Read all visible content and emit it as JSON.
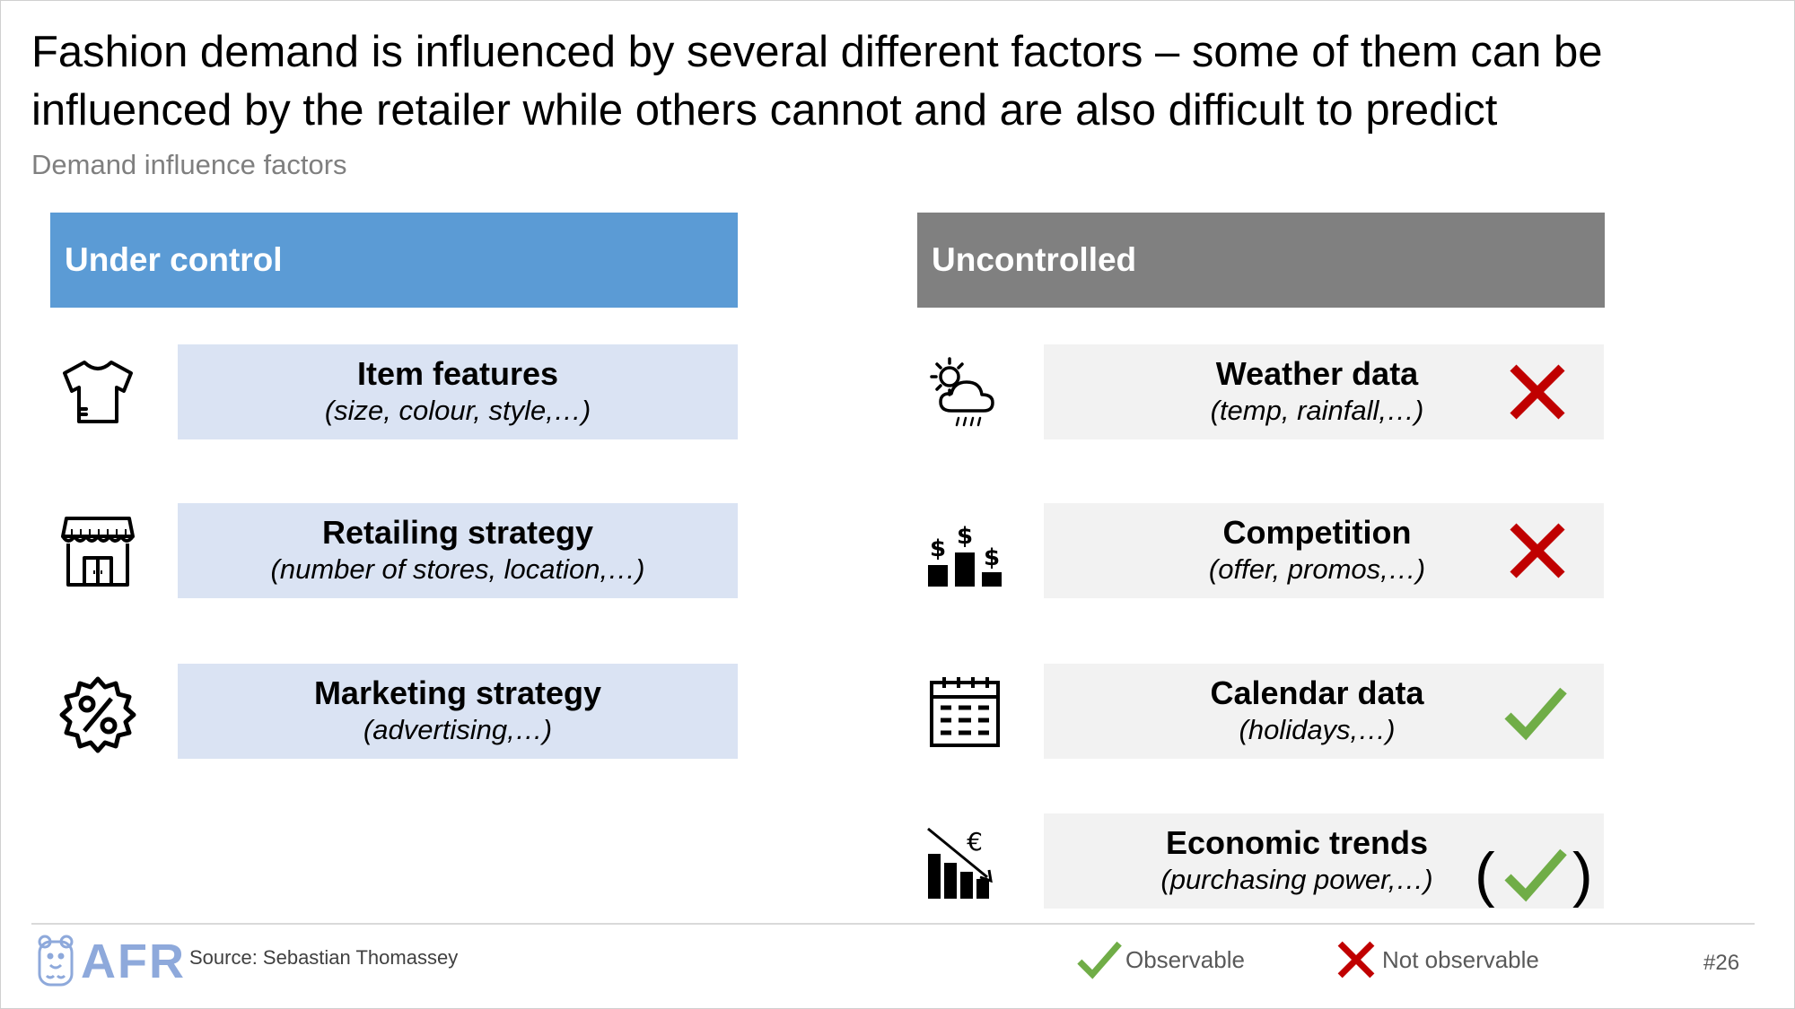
{
  "slide": {
    "title": "Fashion demand is influenced by several different factors – some of them can be influenced by the retailer while others cannot and are also difficult to predict",
    "subtitle": "Demand influence factors"
  },
  "columns": {
    "left": {
      "header": "Under control",
      "color": "#5b9bd5"
    },
    "right": {
      "header": "Uncontrolled",
      "color": "#808080"
    }
  },
  "under_control": [
    {
      "name": "Item features",
      "detail": "(size, colour, style,…)",
      "icon": "tshirt-icon"
    },
    {
      "name": "Retailing strategy",
      "detail": "(number of stores, location,…)",
      "icon": "storefront-icon"
    },
    {
      "name": "Marketing strategy",
      "detail": "(advertising,…)",
      "icon": "percent-badge-icon"
    }
  ],
  "uncontrolled": [
    {
      "name": "Weather data",
      "detail": "(temp, rainfall,…)",
      "icon": "weather-icon",
      "status": "not-observable"
    },
    {
      "name": "Competition",
      "detail": "(offer, promos,…)",
      "icon": "competition-icon",
      "status": "not-observable"
    },
    {
      "name": "Calendar data",
      "detail": "(holidays,…)",
      "icon": "calendar-icon",
      "status": "observable"
    },
    {
      "name": "Economic trends",
      "detail": "(purchasing power,…)",
      "icon": "economic-decline-icon",
      "status": "partially-observable",
      "paren_open": "(",
      "paren_close": ")"
    }
  ],
  "footer": {
    "logo_text": "AFR",
    "source": "Source: Sebastian Thomassey",
    "legend": {
      "observable": "Observable",
      "not_observable": "Not observable"
    },
    "page_number": "#26"
  },
  "colors": {
    "check": "#70ad47",
    "cross": "#c00000",
    "box_left": "#dae3f3",
    "box_right": "#f2f2f2",
    "logo": "#8ea9db"
  }
}
